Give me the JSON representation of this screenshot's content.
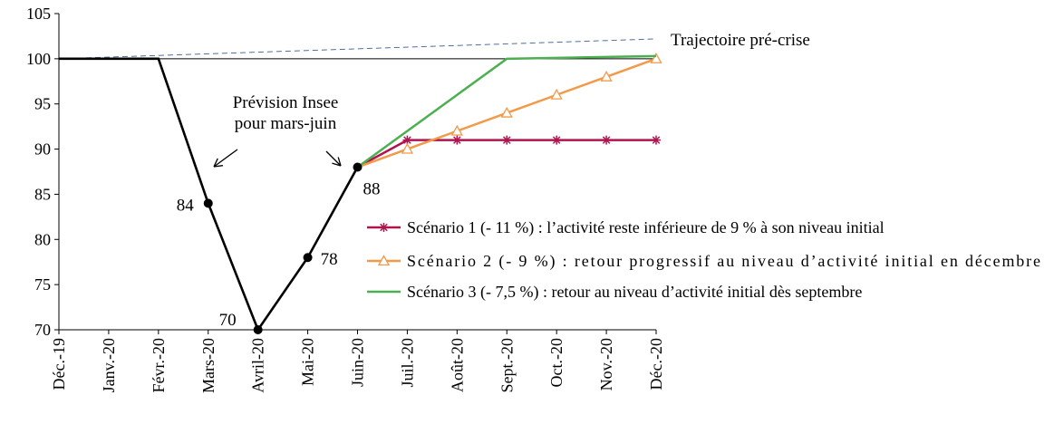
{
  "chart_data": {
    "type": "line",
    "title": "",
    "xlabel": "",
    "ylabel": "",
    "categories": [
      "Déc.-19",
      "Janv.-20",
      "Févr.-20",
      "Mars-20",
      "Avril-20",
      "Mai-20",
      "Juin-20",
      "Juil.-20",
      "Août-20",
      "Sept.-20",
      "Oct.-20",
      "Nov.-20",
      "Déc.-20"
    ],
    "ylim": [
      70,
      105
    ],
    "yticks": [
      70,
      75,
      80,
      85,
      90,
      95,
      100,
      105
    ],
    "grid": false,
    "legend_position": "right",
    "reference_line": 100,
    "trend": {
      "label": "Trajectoire pré-crise",
      "values": [
        100,
        102.2
      ],
      "color": "#4f6f9f"
    },
    "base_series": {
      "values": [
        100,
        100,
        100,
        84,
        70,
        78,
        88
      ],
      "color": "#000000",
      "marked_points": [
        3,
        4,
        5,
        6
      ],
      "data_labels": {
        "3": "84",
        "4": "70",
        "5": "78",
        "6": "88"
      }
    },
    "series": [
      {
        "name": "Scénario 1 (- 11 %) : l’activité reste inférieure de 9 % à son niveau initial",
        "color": "#b0144f",
        "marker": "star",
        "values": [
          null,
          null,
          null,
          null,
          null,
          null,
          88,
          91,
          91,
          91,
          91,
          91,
          91
        ]
      },
      {
        "name": "Scénario 2 (- 9 %) : retour progressif au niveau d’activité initial en décembre",
        "color": "#f39a4a",
        "marker": "triangle",
        "values": [
          null,
          null,
          null,
          null,
          null,
          null,
          88,
          90,
          92,
          94,
          96,
          98,
          100
        ]
      },
      {
        "name": "Scénario 3 (- 7,5 %) : retour au niveau d’activité initial dès septembre",
        "color": "#4caf50",
        "marker": "none",
        "values": [
          null,
          null,
          null,
          null,
          null,
          null,
          88,
          92,
          96,
          100,
          100.1,
          100.2,
          100.3
        ]
      }
    ],
    "annotation": {
      "lines": [
        "Prévision Insee",
        "pour mars-juin"
      ]
    }
  }
}
